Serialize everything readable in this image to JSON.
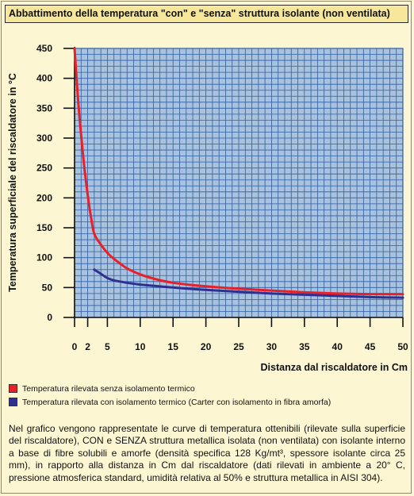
{
  "title": "Abbattimento della temperatura \"con\" e \"senza\" struttura isolante (non ventilata)",
  "colors": {
    "plot_bg": "#a9c3df",
    "grid": "#2f5fa3",
    "series_without": "#e8202a",
    "series_with": "#2e2f8f",
    "page_bg": "#fdf6d2",
    "title_bg": "#f6e79a"
  },
  "legend": [
    {
      "label": "Temperatura rilevata senza isolamento termico",
      "color": "#e8202a"
    },
    {
      "label": "Temperatura rilevata con isolamento termico (Carter con isolamento in fibra amorfa)",
      "color": "#2e2f8f"
    }
  ],
  "note": "Nel grafico vengono rappresentate le curve di temperatura ottenibili (rilevate sulla superficie del riscaldatore), CON e SENZA struttura metallica isolata (non ventilata) con isolante interno a base di fibre solubili e amorfe (densità specifica 128 Kg/mt³, spessore isolante circa 25 mm), in rapporto alla distanza in Cm dal riscaldatore (dati rilevati in ambiente a 20° C, pressione atmosferica standard, umidità relativa al 50% e struttura metallica in AISI 304).",
  "chart_data": {
    "type": "line",
    "title": "Abbattimento della temperatura \"con\" e \"senza\" struttura isolante (non ventilata)",
    "xlabel": "Distanza dal riscaldatore in Cm",
    "ylabel": "Temperatura superficiale del riscaldatore in °C",
    "xticks": [
      0,
      2,
      5,
      10,
      15,
      20,
      25,
      30,
      35,
      40,
      45,
      50
    ],
    "yticks": [
      0,
      50,
      100,
      150,
      200,
      250,
      300,
      350,
      400,
      450
    ],
    "xlim": [
      0,
      50
    ],
    "ylim": [
      0,
      450
    ],
    "grid": true,
    "legend_position": "bottom",
    "series": [
      {
        "name": "Temperatura rilevata senza isolamento termico",
        "color": "#e8202a",
        "x": [
          0,
          0.5,
          1,
          1.5,
          2,
          2.5,
          3,
          4,
          5,
          6,
          8,
          10,
          12,
          15,
          20,
          25,
          30,
          35,
          40,
          45,
          50
        ],
        "y": [
          450,
          370,
          305,
          250,
          205,
          168,
          140,
          122,
          108,
          98,
          82,
          72,
          65,
          58,
          52,
          48,
          45,
          42,
          40,
          39,
          39
        ]
      },
      {
        "name": "Temperatura rilevata con isolamento termico (Carter con isolamento in fibra amorfa)",
        "color": "#2e2f8f",
        "x": [
          3,
          4,
          5,
          6,
          8,
          10,
          12,
          15,
          20,
          25,
          30,
          35,
          40,
          45,
          50
        ],
        "y": [
          80,
          73,
          66,
          62,
          58,
          55,
          53,
          50,
          46,
          43,
          40,
          38,
          36,
          34,
          33
        ]
      }
    ]
  }
}
